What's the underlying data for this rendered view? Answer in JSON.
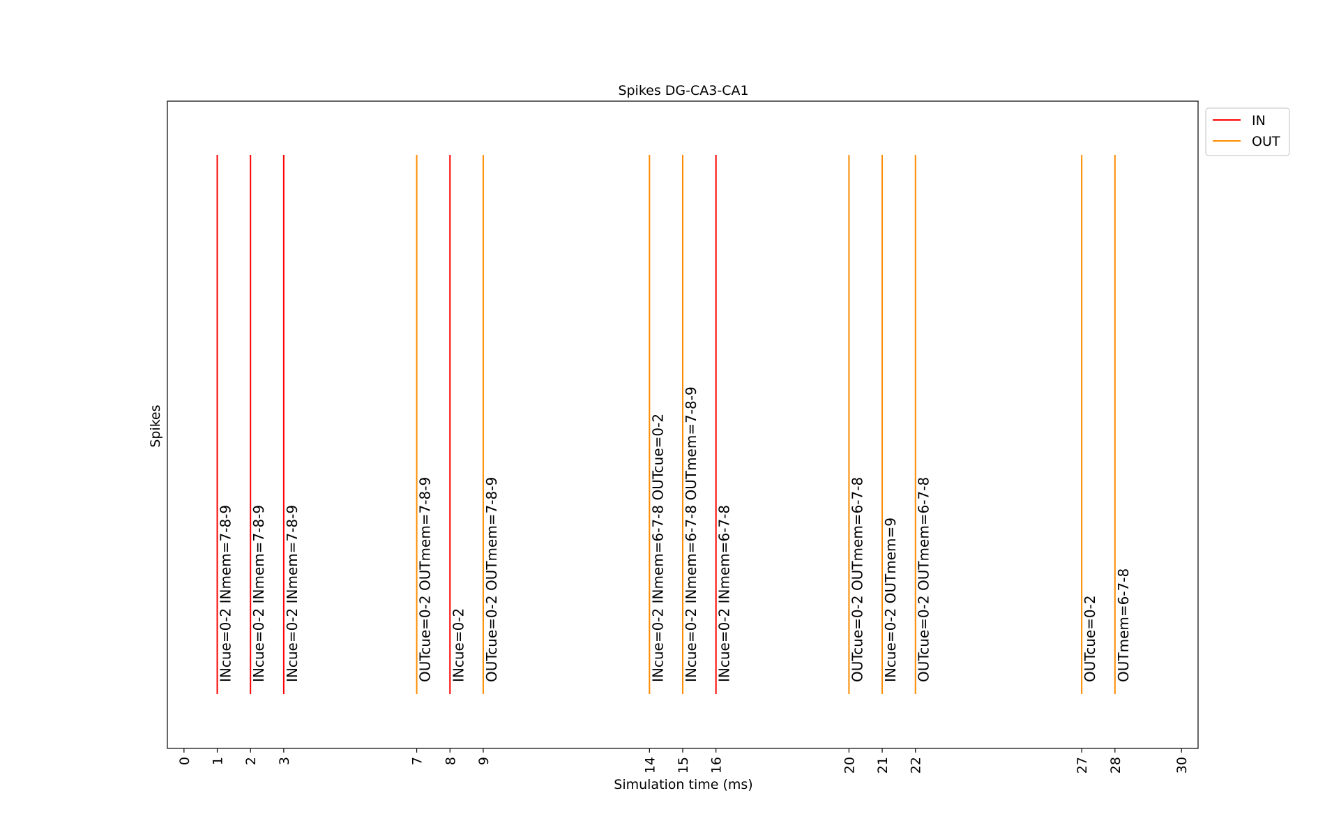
{
  "chart_data": {
    "type": "event",
    "title": "Spikes DG-CA3-CA1",
    "xlabel": "Simulation time (ms)",
    "ylabel": "Spikes",
    "xlim": [
      -0.5,
      30.5
    ],
    "xticks": [
      "0",
      "1",
      "2",
      "3",
      "7",
      "8",
      "9",
      "14",
      "15",
      "16",
      "20",
      "21",
      "22",
      "27",
      "28",
      "30"
    ],
    "grid": false,
    "legend_position": "outside-top-right",
    "series": [
      {
        "name": "IN",
        "color": "#ff0000"
      },
      {
        "name": "OUT",
        "color": "#ff8c00"
      }
    ],
    "events": [
      {
        "x": 1,
        "series": "IN",
        "label": "INcue=0-2 INmem=7-8-9"
      },
      {
        "x": 2,
        "series": "IN",
        "label": "INcue=0-2 INmem=7-8-9"
      },
      {
        "x": 3,
        "series": "IN",
        "label": "INcue=0-2 INmem=7-8-9"
      },
      {
        "x": 7,
        "series": "OUT",
        "label": "OUTcue=0-2 OUTmem=7-8-9"
      },
      {
        "x": 8,
        "series": "IN",
        "label": "INcue=0-2"
      },
      {
        "x": 9,
        "series": "OUT",
        "label": "OUTcue=0-2 OUTmem=7-8-9"
      },
      {
        "x": 14,
        "series": "OUT",
        "label": "INcue=0-2 INmem=6-7-8 OUTcue=0-2"
      },
      {
        "x": 15,
        "series": "OUT",
        "label": "INcue=0-2 INmem=6-7-8 OUTmem=7-8-9"
      },
      {
        "x": 16,
        "series": "IN",
        "label": "INcue=0-2 INmem=6-7-8"
      },
      {
        "x": 20,
        "series": "OUT",
        "label": "OUTcue=0-2 OUTmem=6-7-8"
      },
      {
        "x": 21,
        "series": "OUT",
        "label": "INcue=0-2 OUTmem=9"
      },
      {
        "x": 22,
        "series": "OUT",
        "label": "OUTcue=0-2 OUTmem=6-7-8"
      },
      {
        "x": 27,
        "series": "OUT",
        "label": "OUTcue=0-2"
      },
      {
        "x": 28,
        "series": "OUT",
        "label": "OUTmem=6-7-8"
      }
    ]
  }
}
